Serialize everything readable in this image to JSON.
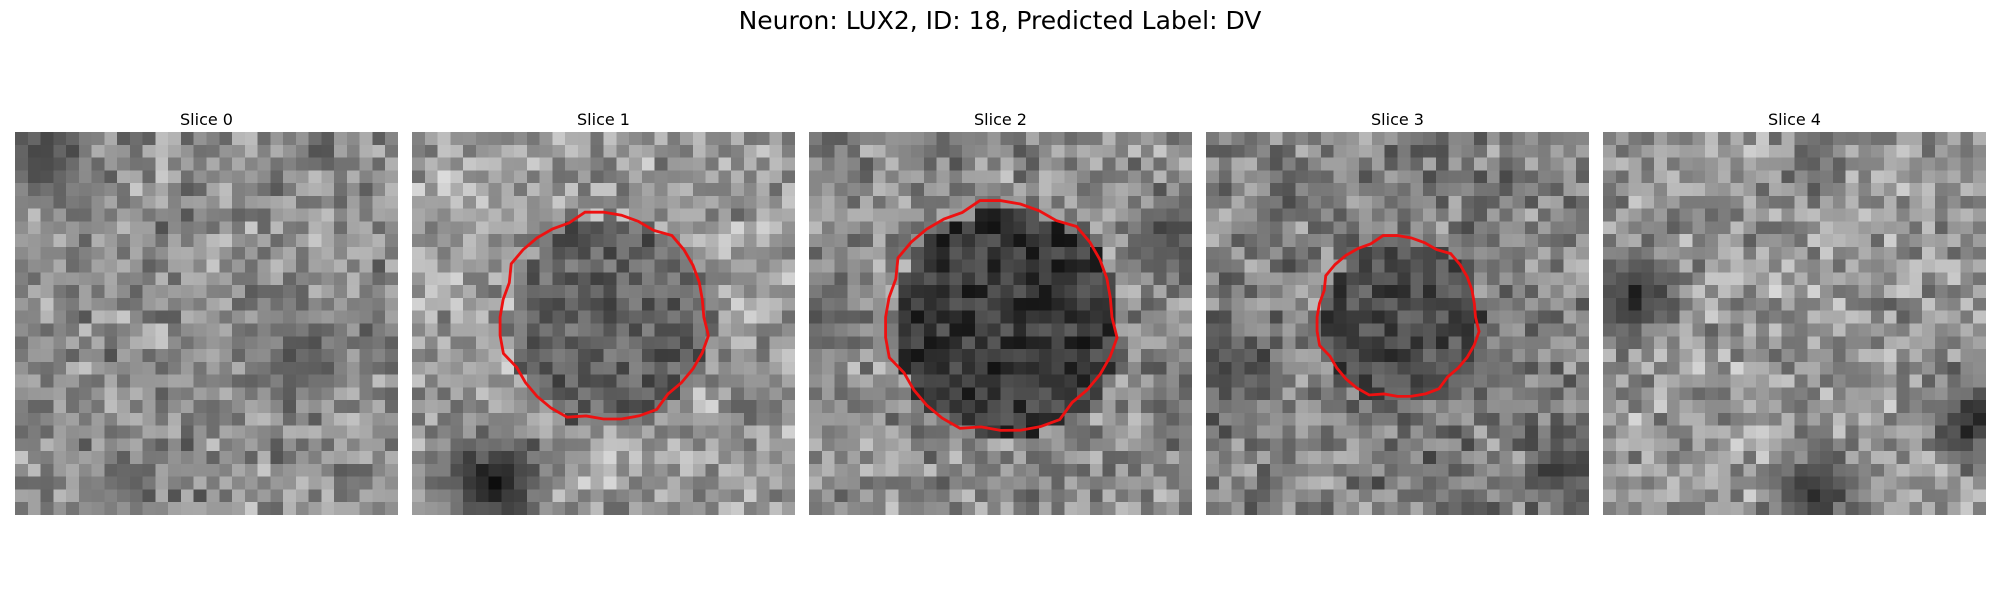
{
  "figure": {
    "title": "Neuron: LUX2, ID: 18, Predicted Label: DV"
  },
  "panels": [
    {
      "title": "Slice 0",
      "seed": 11,
      "base": 0.55,
      "contour": null
    },
    {
      "title": "Slice 1",
      "seed": 23,
      "base": 0.62,
      "contour": {
        "r": 0.27,
        "shade": 0.38
      }
    },
    {
      "title": "Slice 2",
      "seed": 37,
      "base": 0.55,
      "contour": {
        "r": 0.3,
        "shade": 0.22
      }
    },
    {
      "title": "Slice 3",
      "seed": 51,
      "base": 0.5,
      "contour": {
        "r": 0.21,
        "shade": 0.3
      }
    },
    {
      "title": "Slice 4",
      "seed": 67,
      "base": 0.6,
      "contour": null
    }
  ],
  "colors": {
    "contour": "#ee1111"
  }
}
